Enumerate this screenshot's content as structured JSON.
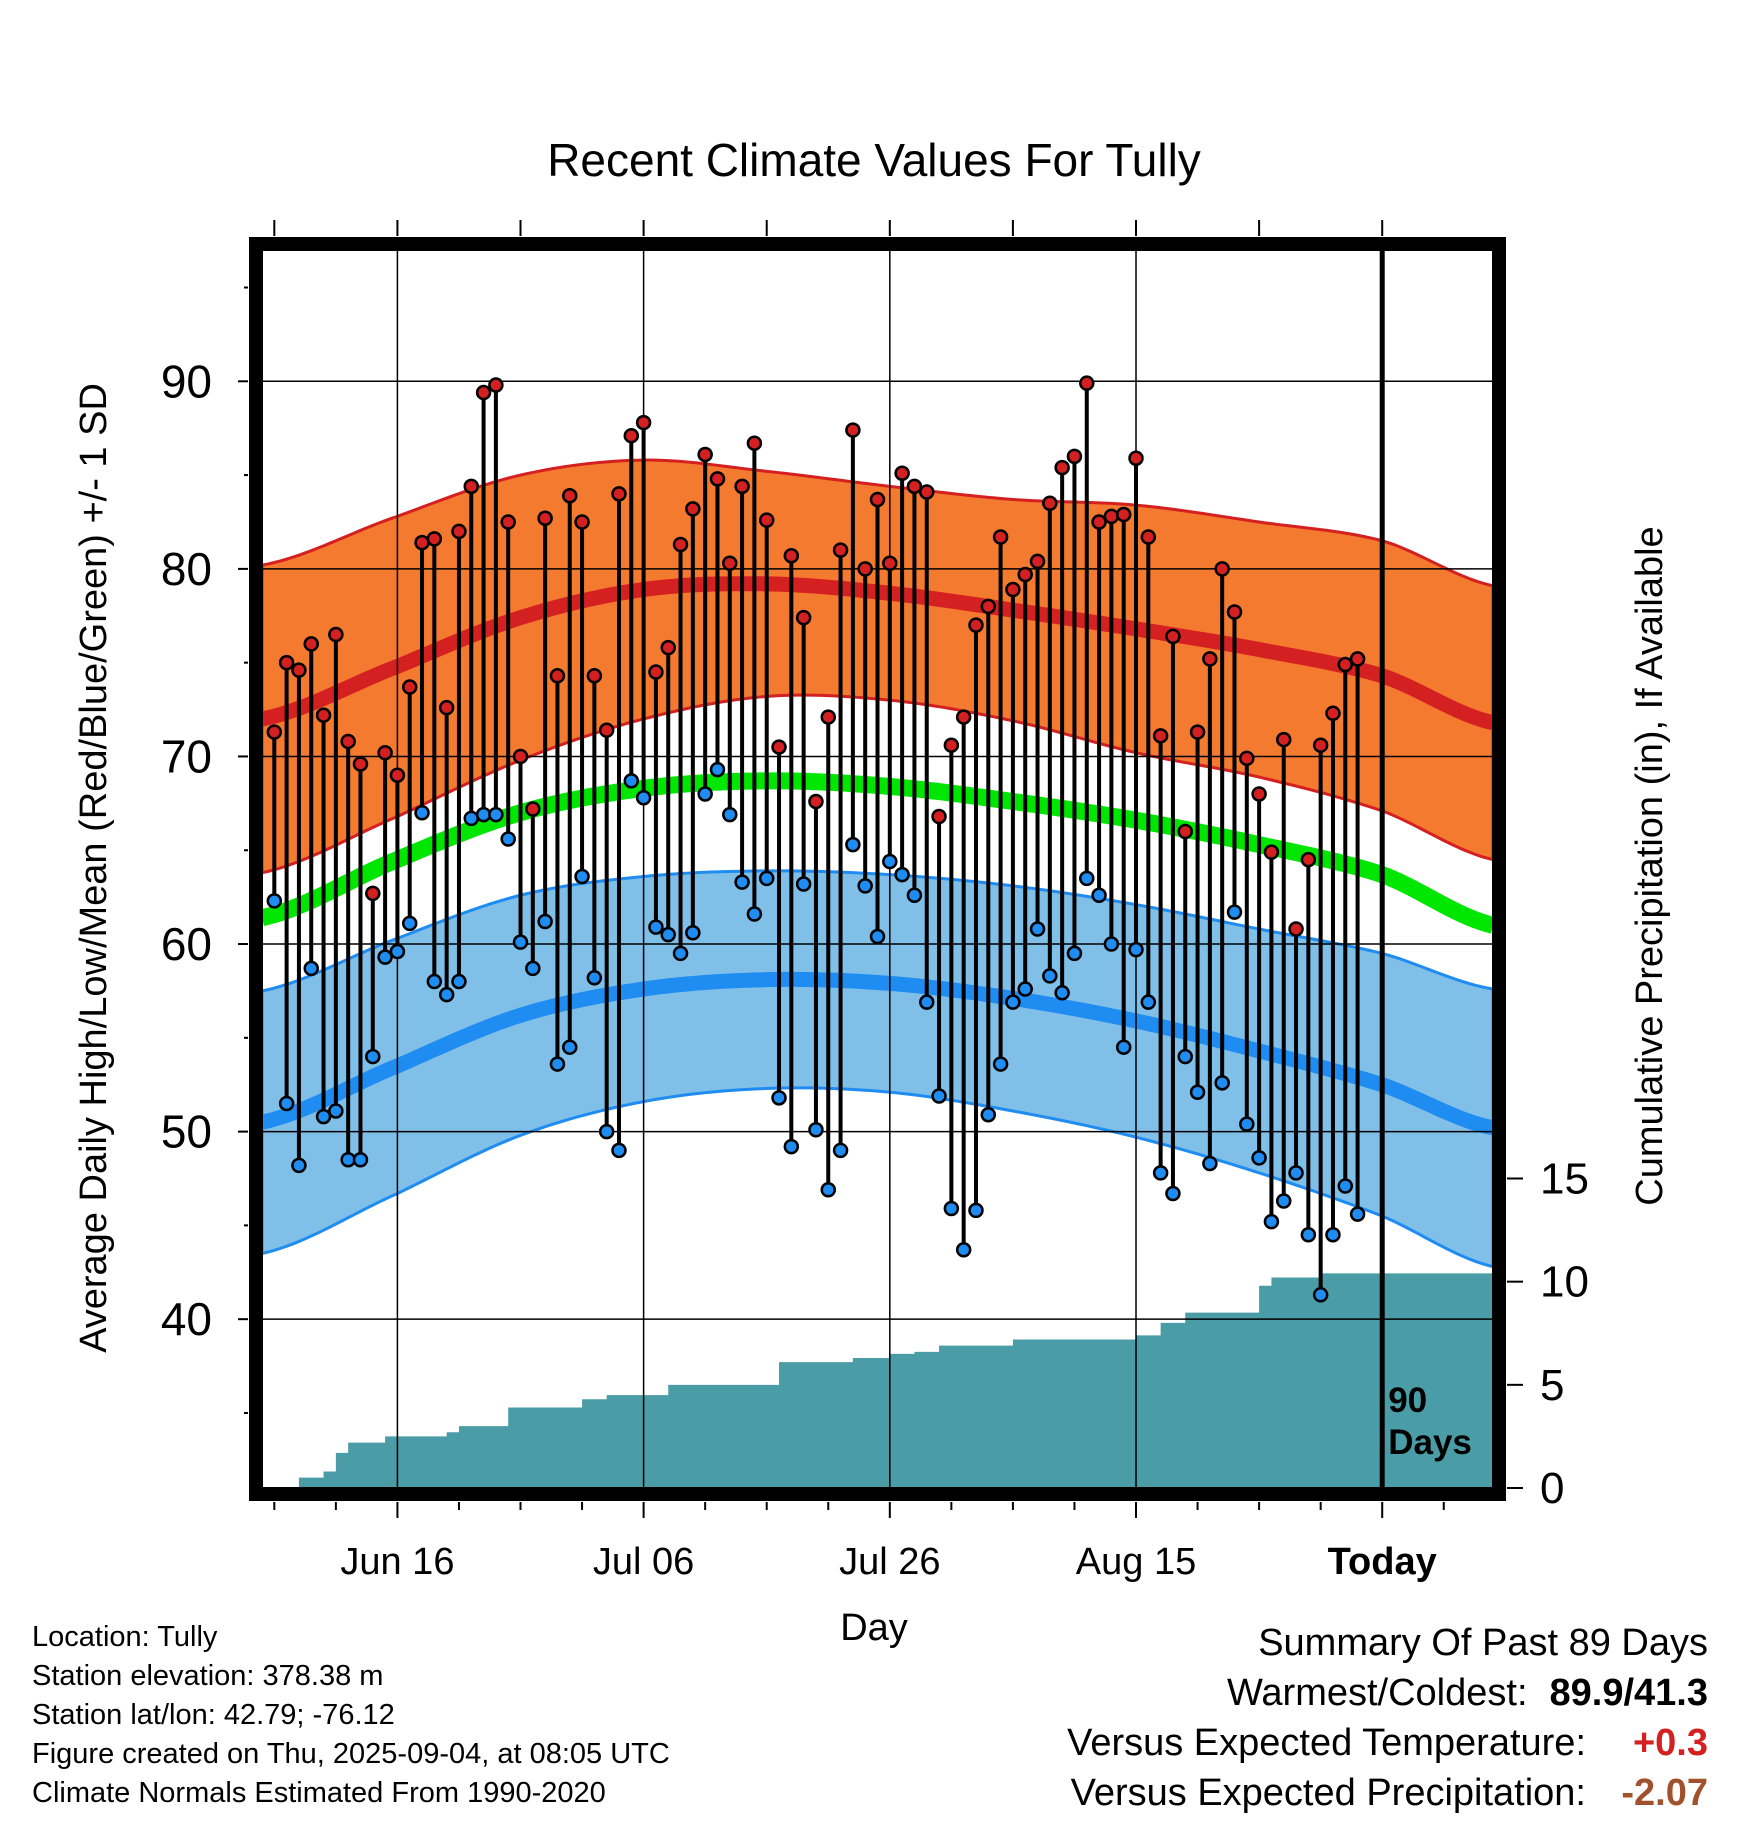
{
  "chart_data": {
    "type": "line",
    "title": "Recent Climate Values For Tully",
    "xlabel": "Day",
    "ylabel": "Average Daily High/Low/Mean (Red/Blue/Green) +/- 1 SD",
    "y2label": "Cumulative Precipitation (in), If Available",
    "ylim": [
      31,
      97
    ],
    "y2lim": [
      0,
      60
    ],
    "x_days_range": [
      -91,
      9
    ],
    "x_ticks": [
      {
        "day": -80,
        "label": "Jun 16"
      },
      {
        "day": -60,
        "label": "Jul 06"
      },
      {
        "day": -40,
        "label": "Jul 26"
      },
      {
        "day": -20,
        "label": "Aug 15"
      },
      {
        "day": 0,
        "label": "Today"
      }
    ],
    "y_ticks": [
      40,
      50,
      60,
      70,
      80,
      90
    ],
    "y2_ticks": [
      0,
      5,
      10,
      15
    ],
    "grid": true,
    "today_marker": "90\nDays",
    "colors": {
      "high_band": "#f47a30",
      "high_line": "#d42020",
      "low_band": "#80c0e8",
      "low_line": "#1e8cf0",
      "mean_line": "#00e600",
      "precip": "#4a9ca6",
      "high_point": "#d42020",
      "low_point": "#1e8cf0",
      "positive": "#d42020",
      "negative": "#a0522d"
    },
    "normals": {
      "days": [
        -91,
        -80,
        -70,
        -60,
        -50,
        -40,
        -30,
        -20,
        -10,
        0,
        9
      ],
      "high_mean": [
        72.0,
        74.8,
        77.4,
        78.9,
        79.2,
        78.7,
        77.8,
        76.8,
        75.7,
        74.3,
        71.8
      ],
      "high_sd": [
        8.2,
        8.0,
        7.6,
        6.9,
        6.0,
        5.7,
        5.9,
        6.6,
        6.8,
        7.2,
        7.3
      ],
      "low_mean": [
        50.5,
        53.5,
        56.2,
        57.6,
        58.1,
        57.9,
        57.1,
        55.9,
        54.3,
        52.5,
        50.2
      ],
      "low_sd": [
        7.0,
        6.8,
        6.4,
        6.0,
        5.8,
        5.8,
        6.0,
        6.2,
        6.5,
        7.0,
        7.4
      ],
      "mean": [
        61.4,
        64.5,
        67.0,
        68.3,
        68.7,
        68.4,
        67.6,
        66.6,
        65.3,
        63.7,
        61.0
      ]
    },
    "daily": {
      "start_day": -90,
      "high": [
        71.3,
        75.0,
        74.6,
        76.0,
        72.2,
        76.5,
        70.8,
        69.6,
        62.7,
        70.2,
        69.0,
        73.7,
        81.4,
        81.6,
        72.6,
        82.0,
        84.4,
        89.4,
        89.8,
        82.5,
        70.0,
        67.2,
        82.7,
        74.3,
        83.9,
        82.5,
        74.3,
        71.4,
        84.0,
        87.1,
        87.8,
        74.5,
        75.8,
        81.3,
        83.2,
        86.1,
        84.8,
        80.3,
        84.4,
        86.7,
        82.6,
        70.5,
        80.7,
        77.4,
        67.6,
        72.1,
        81.0,
        87.4,
        80.0,
        83.7,
        80.3,
        85.1,
        84.4,
        84.1,
        66.8,
        70.6,
        72.1,
        77.0,
        78.0,
        81.7,
        78.9,
        79.7,
        80.4,
        83.5,
        85.4,
        86.0,
        89.9,
        82.5,
        82.8,
        82.9,
        85.9,
        81.7,
        71.1,
        76.4,
        66.0,
        71.3,
        75.2,
        80.0,
        77.7,
        69.9,
        68.0,
        64.9,
        70.9,
        60.8,
        64.5,
        70.6,
        72.3,
        74.9,
        75.2
      ],
      "low": [
        62.3,
        51.5,
        48.2,
        58.7,
        50.8,
        51.1,
        48.5,
        48.5,
        54.0,
        59.3,
        59.6,
        61.1,
        67.0,
        58.0,
        57.3,
        58.0,
        66.7,
        66.9,
        66.9,
        65.6,
        60.1,
        58.7,
        61.2,
        53.6,
        54.5,
        63.6,
        58.2,
        50.0,
        49.0,
        68.7,
        67.8,
        60.9,
        60.5,
        59.5,
        60.6,
        68.0,
        69.3,
        66.9,
        63.3,
        61.6,
        63.5,
        51.8,
        49.2,
        63.2,
        50.1,
        46.9,
        49.0,
        65.3,
        63.1,
        60.4,
        64.4,
        63.7,
        62.6,
        56.9,
        51.9,
        45.9,
        43.7,
        45.8,
        50.9,
        53.6,
        56.9,
        57.6,
        60.8,
        58.3,
        57.4,
        59.5,
        63.5,
        62.6,
        60.0,
        54.5,
        59.7,
        56.9,
        47.8,
        46.7,
        54.0,
        52.1,
        48.3,
        52.6,
        61.7,
        50.4,
        48.6,
        45.2,
        46.3,
        47.8,
        44.5,
        41.3,
        44.5,
        47.1,
        45.6
      ],
      "precip_days": [
        -90,
        -88,
        -86,
        -85,
        -84,
        -81,
        -77,
        -76,
        -75,
        -73,
        -71,
        -68,
        -65,
        -63,
        -60,
        -58,
        -53,
        -49,
        -47,
        -43,
        -40,
        -38,
        -36,
        -35,
        -30,
        -20,
        -18,
        -16,
        -13,
        -10,
        -9,
        -7,
        -5
      ],
      "precip_cum": [
        0.0,
        0.5,
        0.8,
        1.7,
        2.2,
        2.5,
        2.5,
        2.7,
        3.0,
        3.0,
        3.9,
        3.9,
        4.3,
        4.5,
        4.5,
        5.0,
        5.0,
        6.1,
        6.1,
        6.3,
        6.5,
        6.6,
        6.9,
        6.9,
        7.2,
        7.4,
        8.0,
        8.5,
        8.5,
        9.8,
        10.2,
        10.2,
        10.4
      ]
    }
  },
  "info": {
    "location": "Location: Tully",
    "elevation": "Station elevation: 378.38 m",
    "latlon": "Station lat/lon: 42.79; -76.12",
    "created": "Figure created on Thu, 2025-09-04, at 08:05 UTC",
    "normals": "Climate Normals Estimated From 1990-2020"
  },
  "summary": {
    "title": "Summary Of Past 89 Days",
    "warm_cold_label": "Warmest/Coldest:",
    "warm_cold_value": "89.9/41.3",
    "temp_label": "Versus Expected Temperature:",
    "temp_value": "+0.3",
    "precip_label": "Versus Expected Precipitation:",
    "precip_value": "-2.07"
  }
}
